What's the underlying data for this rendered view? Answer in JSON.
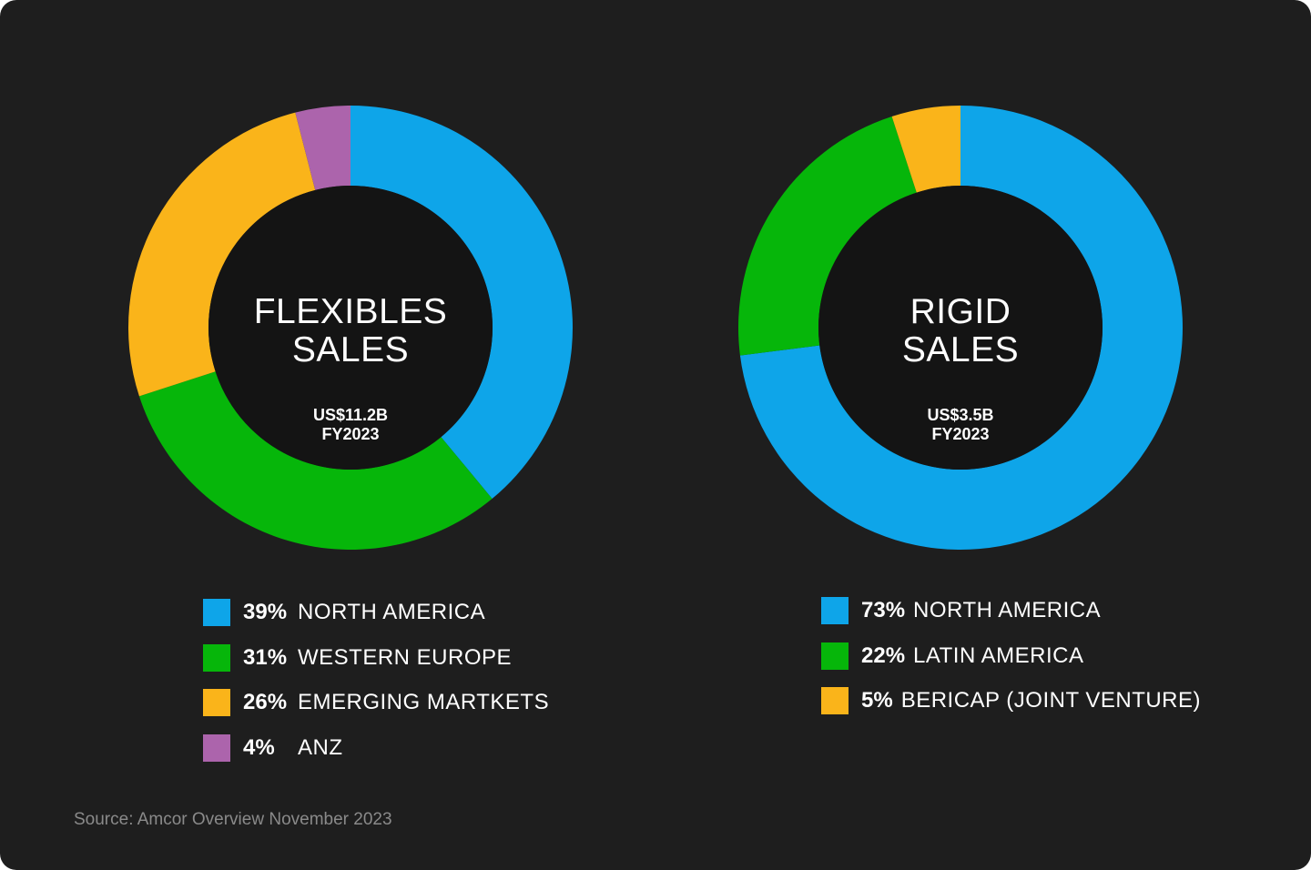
{
  "chart_data": [
    {
      "type": "pie",
      "title": "FLEXIBLES SALES",
      "title_lines": [
        "FLEXIBLES",
        "SALES"
      ],
      "value": "US$11.2B",
      "period": "FY2023",
      "slices": [
        {
          "label": "NORTH AMERICA",
          "pct_label": "39%",
          "value": 39,
          "color": "#0ea5e9"
        },
        {
          "label": "WESTERN EUROPE",
          "pct_label": "31%",
          "value": 31,
          "color": "#06b60a"
        },
        {
          "label": "EMERGING MARTKETS",
          "pct_label": "26%",
          "value": 26,
          "color": "#fab41a"
        },
        {
          "label": "ANZ",
          "pct_label": "4%",
          "value": 4,
          "color": "#ac64ac"
        }
      ]
    },
    {
      "type": "pie",
      "title": "RIGID SALES",
      "title_lines": [
        "RIGID",
        "SALES"
      ],
      "value": "US$3.5B",
      "period": "FY2023",
      "slices": [
        {
          "label": "NORTH AMERICA",
          "pct_label": "73%",
          "value": 73,
          "color": "#0ea5e9"
        },
        {
          "label": "LATIN AMERICA",
          "pct_label": "22%",
          "value": 22,
          "color": "#06b60a"
        },
        {
          "label": "BERICAP (JOINT VENTURE)",
          "pct_label": "5%",
          "value": 5,
          "color": "#fab41a"
        }
      ]
    }
  ],
  "source": "Source: Amcor Overview November 2023",
  "colors": {
    "background": "#1e1e1e",
    "hole": "#141414"
  }
}
